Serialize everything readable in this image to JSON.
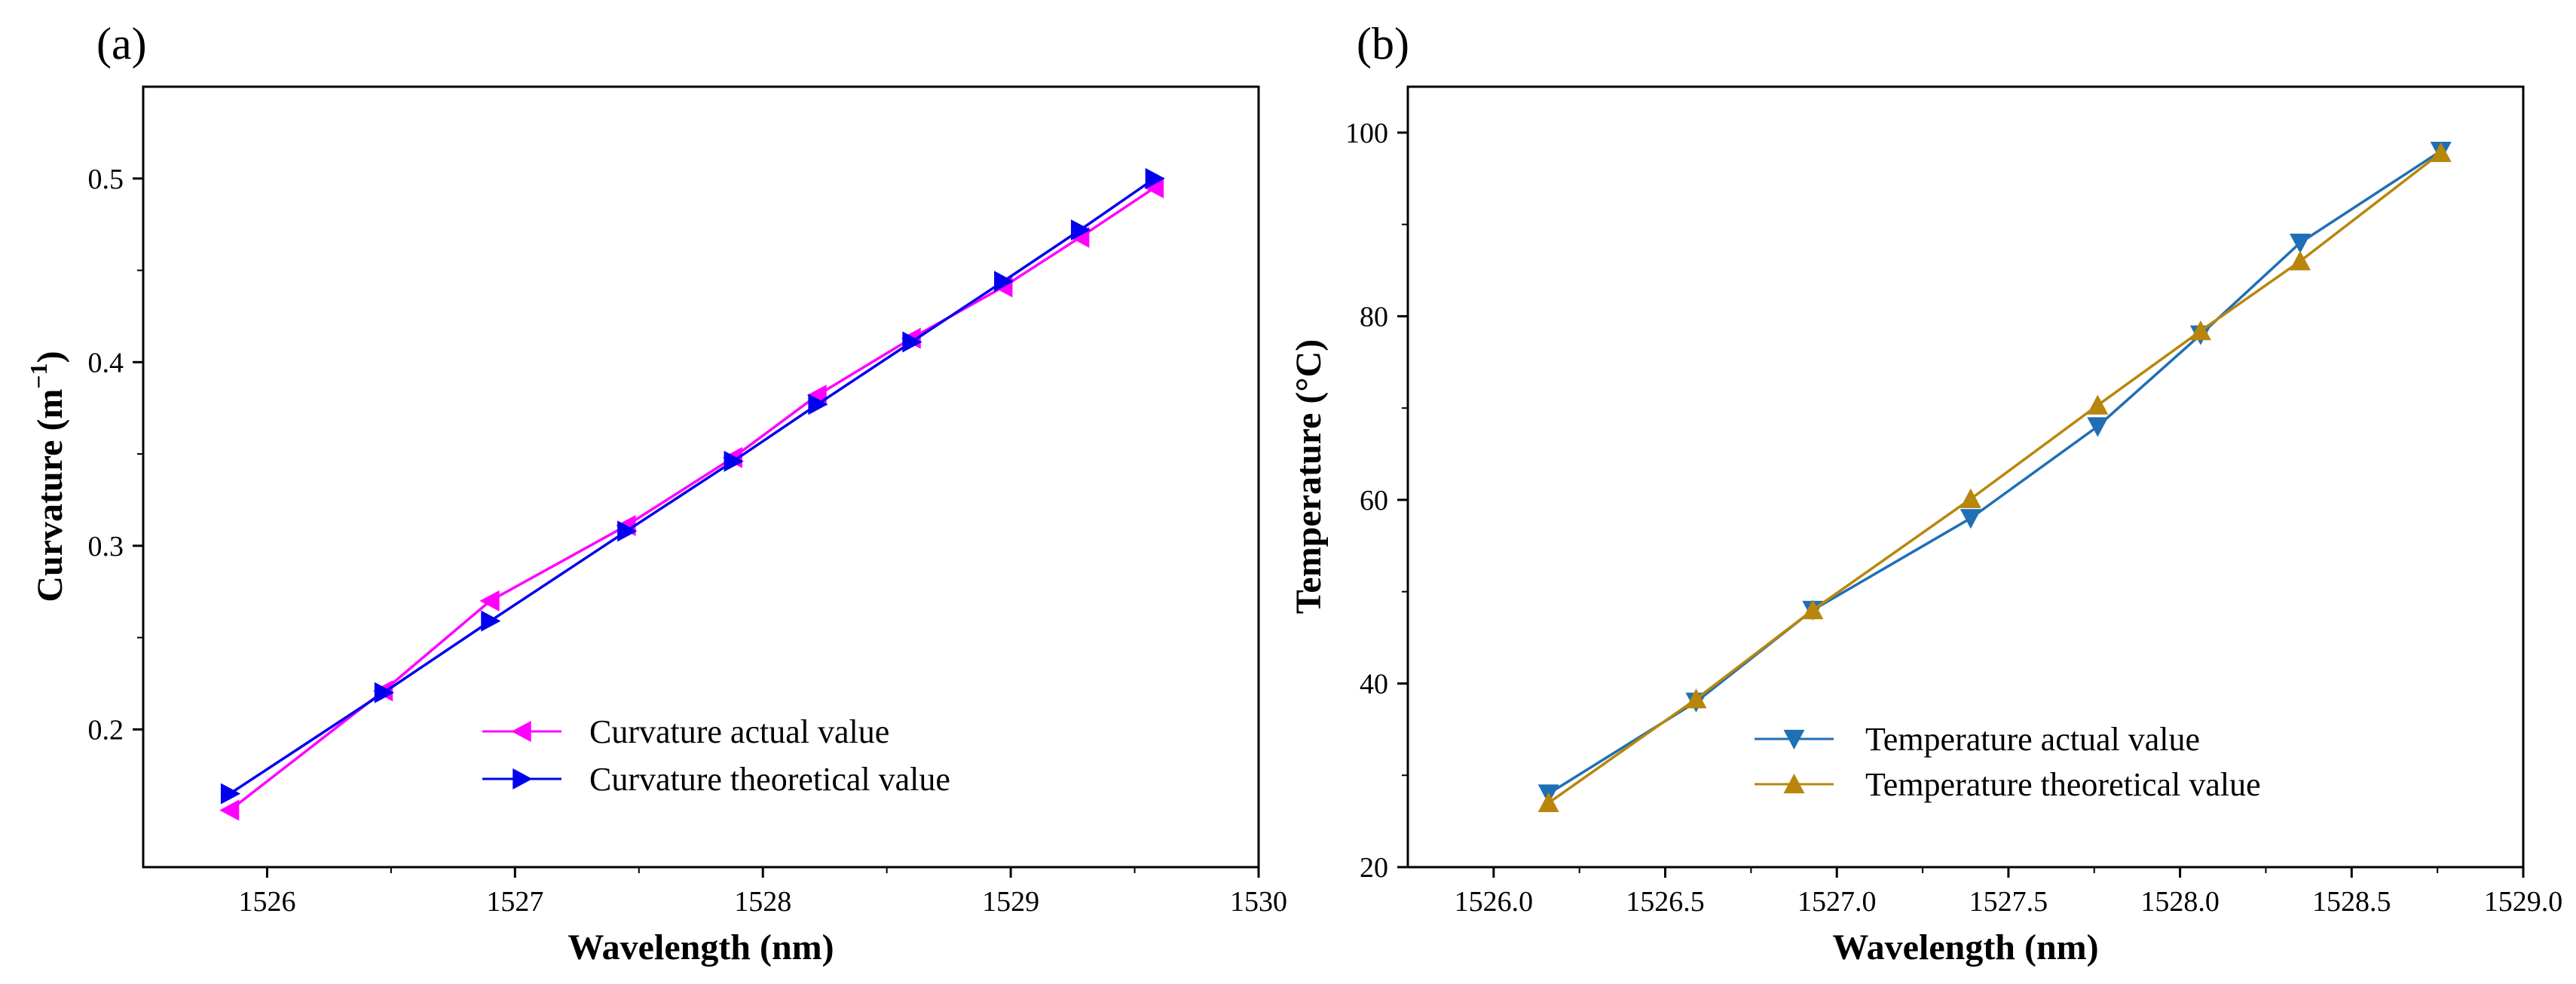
{
  "chart_data": [
    {
      "type": "line",
      "panel_label": "(a)",
      "xlabel": "Wavelength (nm)",
      "ylabel_main": "Curvature (m",
      "ylabel_sup": "−1",
      "ylabel_close": ")",
      "xlim": [
        1525.5,
        1530
      ],
      "ylim": [
        0.125,
        0.55
      ],
      "xticks": [
        1526,
        1527,
        1528,
        1529,
        1530
      ],
      "xtick_labels": [
        "1526",
        "1527",
        "1528",
        "1529",
        "1530"
      ],
      "yticks": [
        0.2,
        0.3,
        0.4,
        0.5
      ],
      "ytick_labels": [
        "0.2",
        "0.3",
        "0.4",
        "0.5"
      ],
      "legend_position": "lower-right",
      "series": [
        {
          "name": "Curvature actual value",
          "color": "#ff00ff",
          "marker": "triangle-left",
          "x": [
            1525.85,
            1526.47,
            1526.9,
            1527.45,
            1527.88,
            1528.22,
            1528.6,
            1528.97,
            1529.28,
            1529.58
          ],
          "y": [
            0.156,
            0.221,
            0.27,
            0.311,
            0.348,
            0.382,
            0.413,
            0.441,
            0.468,
            0.495
          ]
        },
        {
          "name": "Curvature theoretical value",
          "color": "#0000ee",
          "marker": "triangle-right",
          "x": [
            1525.85,
            1526.47,
            1526.9,
            1527.45,
            1527.88,
            1528.22,
            1528.6,
            1528.97,
            1529.28,
            1529.58
          ],
          "y": [
            0.165,
            0.22,
            0.259,
            0.308,
            0.346,
            0.377,
            0.411,
            0.444,
            0.472,
            0.5
          ]
        }
      ]
    },
    {
      "type": "line",
      "panel_label": "(b)",
      "xlabel": "Wavelength (nm)",
      "ylabel": "Temperature  (°C)",
      "xlim": [
        1525.75,
        1529.0
      ],
      "ylim": [
        20,
        105
      ],
      "xticks": [
        1526.0,
        1526.5,
        1527.0,
        1527.5,
        1528.0,
        1528.5,
        1529.0
      ],
      "xtick_labels": [
        "1526.0",
        "1526.5",
        "1527.0",
        "1527.5",
        "1528.0",
        "1528.5",
        "1529.0"
      ],
      "yticks": [
        20,
        40,
        60,
        80,
        100
      ],
      "ytick_labels": [
        "20",
        "40",
        "60",
        "80",
        "100"
      ],
      "legend_position": "lower-right",
      "series": [
        {
          "name": "Temperature actual value",
          "color": "#1f6fb4",
          "marker": "triangle-down",
          "x": [
            1526.16,
            1526.59,
            1526.93,
            1527.39,
            1527.76,
            1528.06,
            1528.35,
            1528.76
          ],
          "y": [
            28,
            38,
            48,
            58,
            68,
            78,
            88,
            98
          ]
        },
        {
          "name": "Temperature theoretical value",
          "color": "#b8860b",
          "marker": "triangle-up",
          "x": [
            1526.16,
            1526.59,
            1526.93,
            1527.39,
            1527.76,
            1528.06,
            1528.35,
            1528.76
          ],
          "y": [
            27,
            38.3,
            48,
            60.1,
            70.3,
            78.4,
            86,
            97.8
          ]
        }
      ]
    }
  ]
}
